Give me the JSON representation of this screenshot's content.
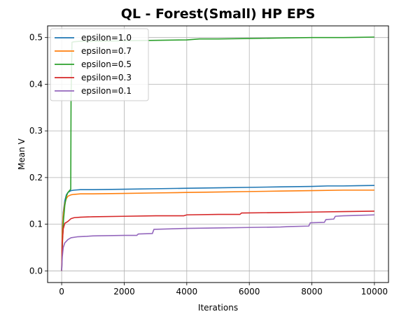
{
  "chart_data": {
    "type": "line",
    "title": "QL - Forest(Small) HP EPS",
    "xlabel": "Iterations",
    "ylabel": "Mean V",
    "xlim": [
      -450,
      10450
    ],
    "ylim": [
      -0.025,
      0.525
    ],
    "xticks": [
      0,
      2000,
      4000,
      6000,
      8000,
      10000
    ],
    "yticks": [
      0.0,
      0.1,
      0.2,
      0.3,
      0.4,
      0.5
    ],
    "xtick_labels": [
      "0",
      "2000",
      "4000",
      "6000",
      "8000",
      "10000"
    ],
    "ytick_labels": [
      "0.0",
      "0.1",
      "0.2",
      "0.3",
      "0.4",
      "0.5"
    ],
    "grid": true,
    "legend_position": "top-left",
    "series": [
      {
        "name": "epsilon=1.0",
        "color": "#1f77b4",
        "x": [
          0,
          20,
          50,
          100,
          150,
          200,
          300,
          400,
          600,
          1000,
          2000,
          3000,
          4000,
          5000,
          6000,
          7000,
          8000,
          8500,
          9000,
          10000
        ],
        "y": [
          0.0,
          0.09,
          0.125,
          0.15,
          0.163,
          0.168,
          0.172,
          0.173,
          0.174,
          0.174,
          0.175,
          0.176,
          0.177,
          0.178,
          0.179,
          0.18,
          0.181,
          0.182,
          0.182,
          0.183
        ]
      },
      {
        "name": "epsilon=0.7",
        "color": "#ff7f0e",
        "x": [
          0,
          20,
          50,
          100,
          150,
          200,
          300,
          400,
          600,
          1000,
          2000,
          3000,
          4000,
          5000,
          6000,
          7000,
          8000,
          9000,
          10000
        ],
        "y": [
          0.0,
          0.085,
          0.12,
          0.145,
          0.155,
          0.16,
          0.163,
          0.164,
          0.165,
          0.165,
          0.166,
          0.167,
          0.168,
          0.169,
          0.17,
          0.171,
          0.172,
          0.173,
          0.173
        ]
      },
      {
        "name": "epsilon=0.5",
        "color": "#2ca02c",
        "x": [
          0,
          30,
          60,
          100,
          150,
          200,
          250,
          290,
          300,
          330,
          400,
          600,
          1000,
          2000,
          3000,
          4000,
          4400,
          5000,
          6000,
          7000,
          8000,
          9000,
          10000
        ],
        "y": [
          0.0,
          0.07,
          0.11,
          0.14,
          0.16,
          0.168,
          0.172,
          0.175,
          0.37,
          0.49,
          0.491,
          0.492,
          0.492,
          0.493,
          0.494,
          0.495,
          0.497,
          0.497,
          0.498,
          0.499,
          0.5,
          0.5,
          0.501
        ]
      },
      {
        "name": "epsilon=0.3",
        "color": "#d62728",
        "x": [
          0,
          20,
          50,
          100,
          200,
          300,
          400,
          600,
          1000,
          2000,
          3000,
          3900,
          4000,
          5000,
          5700,
          5750,
          7000,
          8000,
          9000,
          10000
        ],
        "y": [
          0.0,
          0.06,
          0.09,
          0.102,
          0.106,
          0.112,
          0.114,
          0.115,
          0.116,
          0.117,
          0.118,
          0.118,
          0.12,
          0.121,
          0.121,
          0.124,
          0.125,
          0.126,
          0.127,
          0.128
        ]
      },
      {
        "name": "epsilon=0.1",
        "color": "#9467bd",
        "x": [
          0,
          20,
          50,
          100,
          200,
          300,
          500,
          800,
          1000,
          2000,
          2400,
          2450,
          2900,
          2950,
          4000,
          5000,
          6000,
          7000,
          7300,
          7900,
          7950,
          8400,
          8450,
          8700,
          8750,
          9000,
          10000
        ],
        "y": [
          0.0,
          0.03,
          0.05,
          0.06,
          0.067,
          0.071,
          0.073,
          0.074,
          0.075,
          0.076,
          0.076,
          0.079,
          0.08,
          0.089,
          0.091,
          0.092,
          0.093,
          0.094,
          0.095,
          0.096,
          0.103,
          0.104,
          0.11,
          0.111,
          0.117,
          0.118,
          0.12
        ]
      }
    ]
  }
}
